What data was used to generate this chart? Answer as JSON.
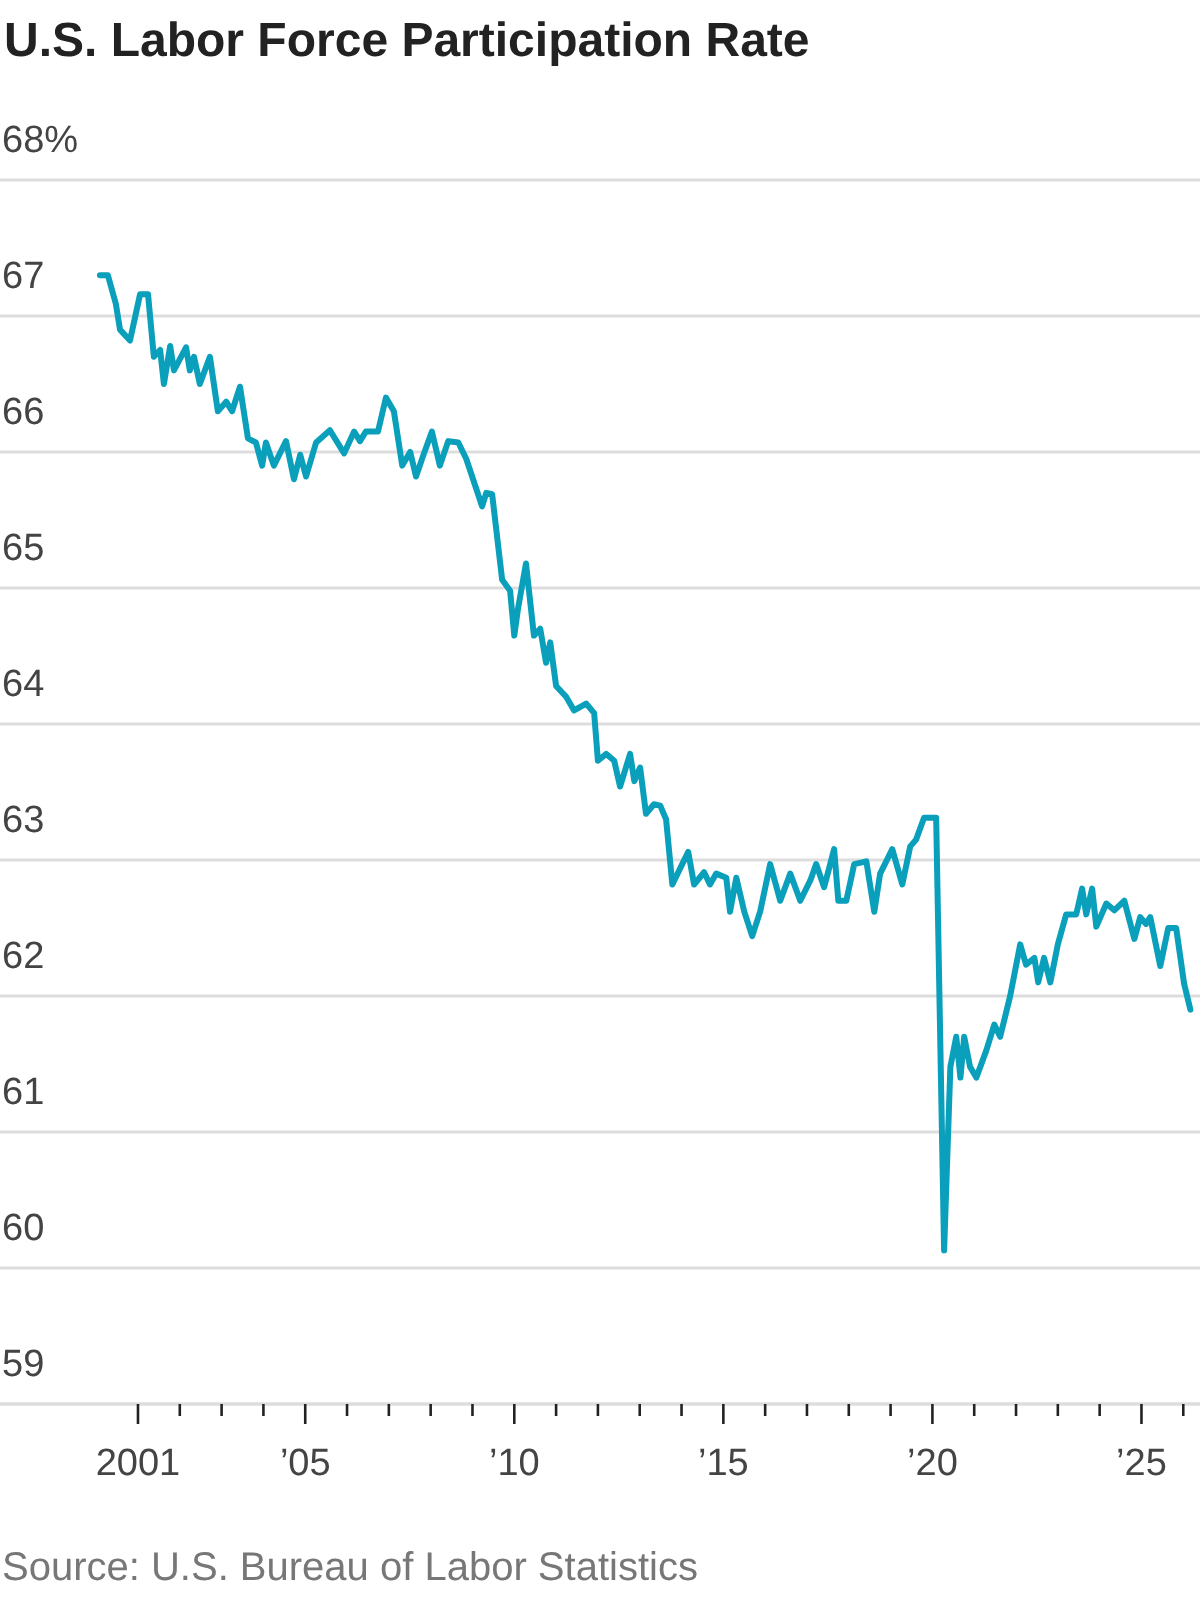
{
  "chart_data": {
    "type": "line",
    "title": "U.S. Labor Force Participation Rate",
    "annotations": [
      "Source: U.S. Bureau of Labor Statistics"
    ],
    "x": [
      2000.09,
      2000.28,
      2000.47,
      2000.57,
      2000.81,
      2001.05,
      2001.24,
      2001.38,
      2001.53,
      2001.62,
      2001.77,
      2001.86,
      2002.15,
      2002.24,
      2002.34,
      2002.48,
      2002.72,
      2002.91,
      2003.11,
      2003.25,
      2003.44,
      2003.63,
      2003.82,
      2003.97,
      2004.06,
      2004.25,
      2004.54,
      2004.73,
      2004.88,
      2005.02,
      2005.26,
      2005.59,
      2005.93,
      2006.17,
      2006.31,
      2006.45,
      2006.74,
      2006.93,
      2007.12,
      2007.32,
      2007.51,
      2007.65,
      2007.84,
      2008.03,
      2008.22,
      2008.42,
      2008.66,
      2008.85,
      2009.09,
      2009.23,
      2009.33,
      2009.47,
      2009.71,
      2009.9,
      2010.0,
      2010.09,
      2010.28,
      2010.47,
      2010.62,
      2010.76,
      2010.86,
      2011.0,
      2011.24,
      2011.43,
      2011.72,
      2011.91,
      2012.0,
      2012.2,
      2012.39,
      2012.53,
      2012.77,
      2012.87,
      2013.01,
      2013.15,
      2013.34,
      2013.49,
      2013.63,
      2013.78,
      2013.97,
      2014.16,
      2014.3,
      2014.54,
      2014.68,
      2014.83,
      2015.07,
      2015.16,
      2015.31,
      2015.5,
      2015.69,
      2015.88,
      2016.12,
      2016.36,
      2016.6,
      2016.84,
      2017.08,
      2017.22,
      2017.41,
      2017.65,
      2017.75,
      2017.94,
      2018.13,
      2018.42,
      2018.61,
      2018.75,
      2019.04,
      2019.28,
      2019.47,
      2019.61,
      2019.8,
      2020.09,
      2020.28,
      2020.43,
      2020.57,
      2020.67,
      2020.76,
      2020.9,
      2021.05,
      2021.29,
      2021.48,
      2021.62,
      2021.86,
      2022.1,
      2022.24,
      2022.44,
      2022.53,
      2022.67,
      2022.82,
      2023.0,
      2023.2,
      2023.44,
      2023.58,
      2023.68,
      2023.82,
      2023.92,
      2024.16,
      2024.35,
      2024.59,
      2024.83,
      2024.97,
      2025.11,
      2025.21,
      2025.45,
      2025.64,
      2025.83,
      2026.02,
      2026.17
    ],
    "series": [
      {
        "color": "#0a9fba",
        "values": [
          67.3,
          67.3,
          67.09,
          66.9,
          66.82,
          67.16,
          67.16,
          66.7,
          66.75,
          66.5,
          66.78,
          66.6,
          66.77,
          66.6,
          66.7,
          66.5,
          66.7,
          66.3,
          66.37,
          66.3,
          66.48,
          66.1,
          66.07,
          65.9,
          66.07,
          65.9,
          66.08,
          65.8,
          65.98,
          65.82,
          66.07,
          66.16,
          65.99,
          66.15,
          66.08,
          66.15,
          66.15,
          66.4,
          66.3,
          65.9,
          66.0,
          65.82,
          65.99,
          66.15,
          65.9,
          66.08,
          66.07,
          65.95,
          65.73,
          65.6,
          65.7,
          65.69,
          65.06,
          64.98,
          64.65,
          64.85,
          65.18,
          64.65,
          64.7,
          64.45,
          64.6,
          64.28,
          64.2,
          64.1,
          64.15,
          64.08,
          63.73,
          63.78,
          63.73,
          63.54,
          63.78,
          63.58,
          63.68,
          63.34,
          63.41,
          63.4,
          63.3,
          62.82,
          62.94,
          63.06,
          62.82,
          62.91,
          62.82,
          62.9,
          62.87,
          62.62,
          62.87,
          62.62,
          62.44,
          62.62,
          62.97,
          62.7,
          62.9,
          62.7,
          62.85,
          62.97,
          62.8,
          63.08,
          62.7,
          62.7,
          62.97,
          62.99,
          62.62,
          62.9,
          63.08,
          62.82,
          63.1,
          63.15,
          63.31,
          63.31,
          60.13,
          61.48,
          61.7,
          61.4,
          61.7,
          61.48,
          61.4,
          61.6,
          61.79,
          61.7,
          62.0,
          62.38,
          62.23,
          62.28,
          62.1,
          62.28,
          62.1,
          62.38,
          62.6,
          62.6,
          62.79,
          62.6,
          62.79,
          62.51,
          62.68,
          62.63,
          62.7,
          62.42,
          62.58,
          62.53,
          62.58,
          62.22,
          62.5,
          62.5,
          62.09,
          61.9
        ]
      }
    ],
    "xlim": [
      1997.7,
      2026.4
    ],
    "xticks": [
      {
        "value": 2001,
        "label": "2001"
      },
      {
        "value": 2002,
        "label": null
      },
      {
        "value": 2003,
        "label": null
      },
      {
        "value": 2004,
        "label": null
      },
      {
        "value": 2005,
        "label": "’05"
      },
      {
        "value": 2006,
        "label": null
      },
      {
        "value": 2007,
        "label": null
      },
      {
        "value": 2008,
        "label": null
      },
      {
        "value": 2009,
        "label": null
      },
      {
        "value": 2010,
        "label": "’10"
      },
      {
        "value": 2011,
        "label": null
      },
      {
        "value": 2012,
        "label": null
      },
      {
        "value": 2013,
        "label": null
      },
      {
        "value": 2014,
        "label": null
      },
      {
        "value": 2015,
        "label": "’15"
      },
      {
        "value": 2016,
        "label": null
      },
      {
        "value": 2017,
        "label": null
      },
      {
        "value": 2018,
        "label": null
      },
      {
        "value": 2019,
        "label": null
      },
      {
        "value": 2020,
        "label": "’20"
      },
      {
        "value": 2021,
        "label": null
      },
      {
        "value": 2022,
        "label": null
      },
      {
        "value": 2023,
        "label": null
      },
      {
        "value": 2024,
        "label": null
      },
      {
        "value": 2025,
        "label": "’25"
      },
      {
        "value": 2026,
        "label": null
      }
    ],
    "ylim": [
      59,
      68
    ],
    "yticks": [
      59,
      60,
      61,
      62,
      63,
      64,
      65,
      66,
      67,
      {
        "value": 68,
        "label": "68%"
      }
    ],
    "grid": "y",
    "line_style": "solid",
    "marker": "none"
  }
}
